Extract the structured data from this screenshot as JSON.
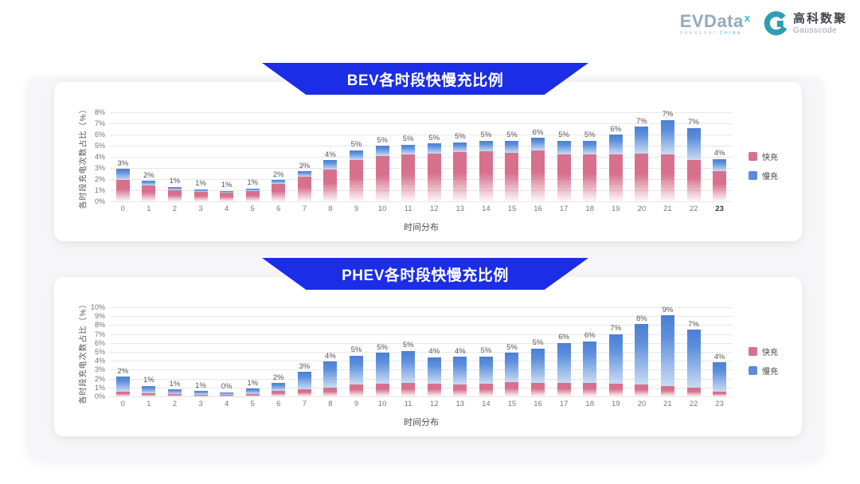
{
  "logo": {
    "evdata_text": "EVData",
    "evdata_sup": "x",
    "evdata_sub_left": "SHANGHAI",
    "evdata_sub_right": "CHINA",
    "gausscode_cn": "高科数聚",
    "gausscode_en": "Gausscode",
    "gausscode_icon_color": "#2c9fb0"
  },
  "colors": {
    "banner_blue": "#1b2de5",
    "fast_pink": "#d7708d",
    "slow_blue": "#5b8bd9",
    "card_bg": "#ffffff",
    "container_bg": "#f6f6f8",
    "gridline": "#e7e7e7"
  },
  "chart_data": [
    {
      "type": "bar",
      "stacked": true,
      "title": "BEV各时段快慢充比例",
      "xlabel": "时间分布",
      "ylabel": "各时段充电次数占比（%）",
      "y_axis_max": 8,
      "y_tick_step": 1,
      "y_tick_suffix": "%",
      "grid": true,
      "legend_position": "right",
      "bold_last_x_tick": true,
      "categories": [
        "0",
        "1",
        "2",
        "3",
        "4",
        "5",
        "6",
        "7",
        "8",
        "9",
        "10",
        "11",
        "12",
        "13",
        "14",
        "15",
        "16",
        "17",
        "18",
        "19",
        "20",
        "21",
        "22",
        "23"
      ],
      "series": [
        {
          "name": "快充",
          "color": "#d7708d",
          "values": [
            1.9,
            1.4,
            1.0,
            0.85,
            0.8,
            0.9,
            1.55,
            2.2,
            2.85,
            3.7,
            4.1,
            4.2,
            4.3,
            4.4,
            4.5,
            4.35,
            4.6,
            4.2,
            4.2,
            4.2,
            4.3,
            4.2,
            3.7,
            2.7
          ]
        },
        {
          "name": "慢充",
          "color": "#5b8bd9",
          "values": [
            1.0,
            0.45,
            0.3,
            0.25,
            0.15,
            0.25,
            0.35,
            0.5,
            0.85,
            0.9,
            0.9,
            0.9,
            0.9,
            0.9,
            0.95,
            1.1,
            1.1,
            1.25,
            1.25,
            1.8,
            2.4,
            3.1,
            2.9,
            1.1
          ]
        }
      ],
      "total_labels": [
        "3%",
        "2%",
        "1%",
        "1%",
        "1%",
        "1%",
        "2%",
        "3%",
        "4%",
        "5%",
        "5%",
        "5%",
        "5%",
        "5%",
        "5%",
        "5%",
        "6%",
        "5%",
        "5%",
        "6%",
        "7%",
        "7%",
        "7%",
        "4%"
      ]
    },
    {
      "type": "bar",
      "stacked": true,
      "title": "PHEV各时段快慢充比例",
      "xlabel": "时间分布",
      "ylabel": "各时段充电次数占比（%）",
      "y_axis_max": 10,
      "y_tick_step": 1,
      "y_tick_suffix": "%",
      "grid": true,
      "legend_position": "right",
      "bold_last_x_tick": false,
      "categories": [
        "0",
        "1",
        "2",
        "3",
        "4",
        "5",
        "6",
        "7",
        "8",
        "9",
        "10",
        "11",
        "12",
        "13",
        "14",
        "15",
        "16",
        "17",
        "18",
        "19",
        "20",
        "21",
        "22",
        "23"
      ],
      "series": [
        {
          "name": "快充",
          "color": "#d7708d",
          "values": [
            0.5,
            0.35,
            0.25,
            0.2,
            0.15,
            0.3,
            0.6,
            0.8,
            1.0,
            1.3,
            1.4,
            1.5,
            1.4,
            1.35,
            1.4,
            1.6,
            1.5,
            1.5,
            1.5,
            1.4,
            1.3,
            1.2,
            1.0,
            0.5
          ]
        },
        {
          "name": "慢充",
          "color": "#5b8bd9",
          "values": [
            1.7,
            0.85,
            0.55,
            0.4,
            0.3,
            0.55,
            0.9,
            1.95,
            2.9,
            3.3,
            3.5,
            3.6,
            3.0,
            3.1,
            3.1,
            3.3,
            3.9,
            4.5,
            4.7,
            5.6,
            6.8,
            7.9,
            6.5,
            3.3
          ]
        }
      ],
      "total_labels": [
        "2%",
        "1%",
        "1%",
        "1%",
        "0%",
        "1%",
        "2%",
        "3%",
        "4%",
        "5%",
        "5%",
        "5%",
        "4%",
        "4%",
        "5%",
        "5%",
        "5%",
        "6%",
        "6%",
        "7%",
        "8%",
        "9%",
        "7%",
        "4%"
      ]
    }
  ]
}
